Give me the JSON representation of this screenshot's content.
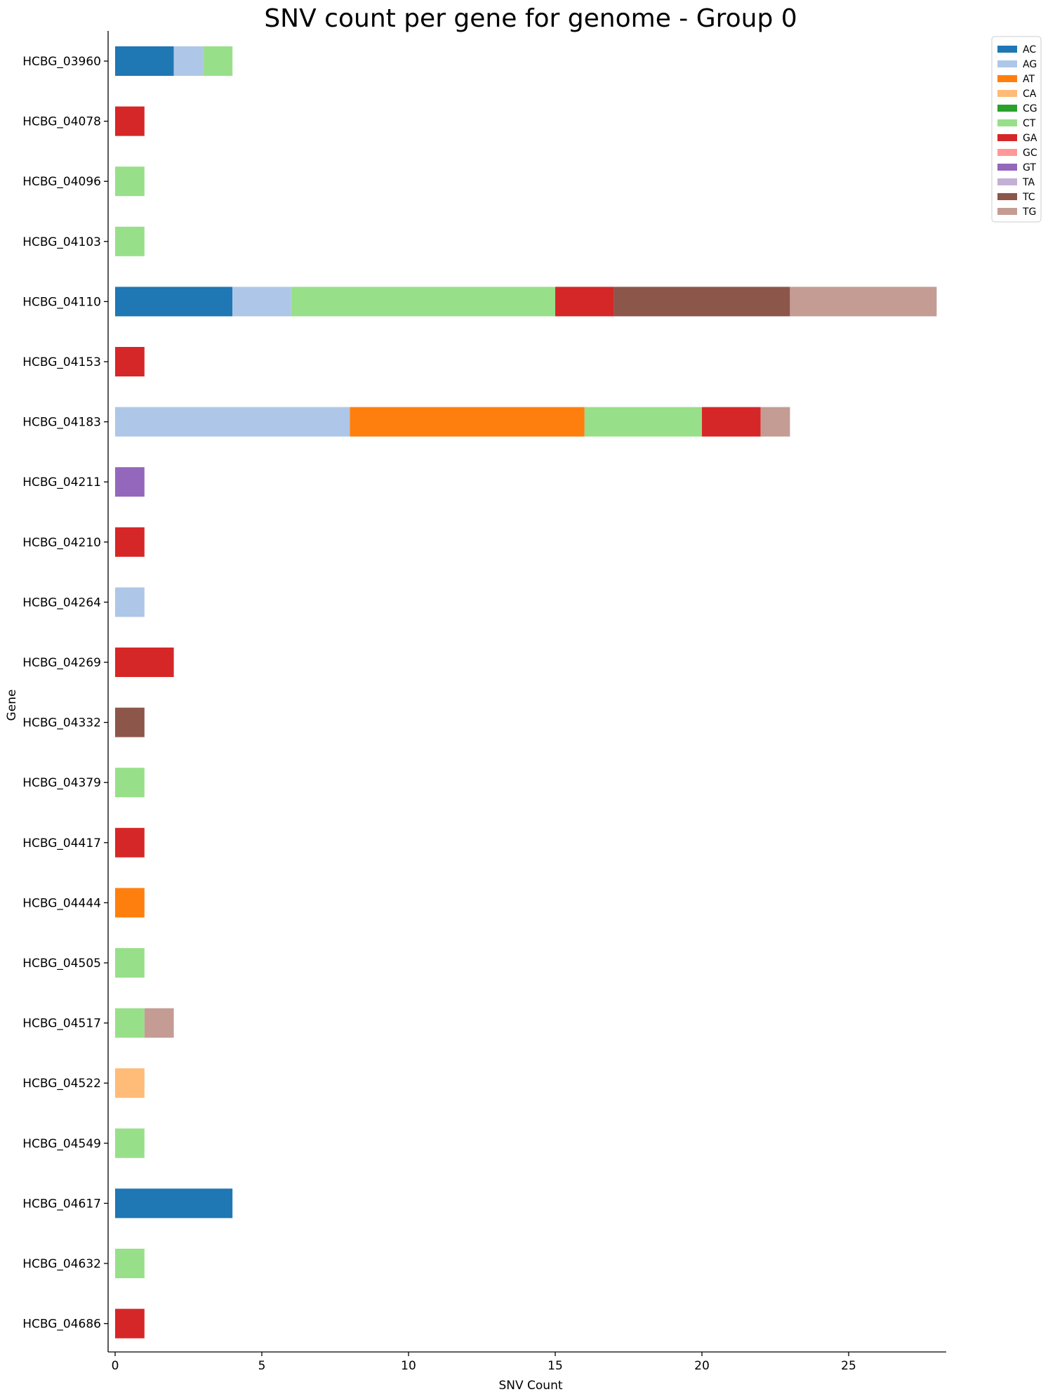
{
  "chart_data": {
    "type": "bar",
    "orientation": "horizontal",
    "stacked": true,
    "title": "SNV count per gene for genome - Group 0",
    "xlabel": "SNV Count",
    "ylabel": "Gene",
    "xlim": [
      0,
      28.3
    ],
    "xticks": [
      0,
      5,
      10,
      15,
      20,
      25
    ],
    "grid": false,
    "legend_position": "top-right outside",
    "categories": [
      "HCBG_03960",
      "HCBG_04078",
      "HCBG_04096",
      "HCBG_04103",
      "HCBG_04110",
      "HCBG_04153",
      "HCBG_04183",
      "HCBG_04211",
      "HCBG_04210",
      "HCBG_04264",
      "HCBG_04269",
      "HCBG_04332",
      "HCBG_04379",
      "HCBG_04417",
      "HCBG_04444",
      "HCBG_04505",
      "HCBG_04517",
      "HCBG_04522",
      "HCBG_04549",
      "HCBG_04617",
      "HCBG_04632",
      "HCBG_04686"
    ],
    "series": [
      {
        "name": "AC",
        "color": "#1f77b4",
        "values": [
          2,
          0,
          0,
          0,
          4,
          0,
          0,
          0,
          0,
          0,
          0,
          0,
          0,
          0,
          0,
          0,
          0,
          0,
          0,
          4,
          0,
          0
        ]
      },
      {
        "name": "AG",
        "color": "#aec7e8",
        "values": [
          1,
          0,
          0,
          0,
          2,
          0,
          8,
          0,
          0,
          1,
          0,
          0,
          0,
          0,
          0,
          0,
          0,
          0,
          0,
          0,
          0,
          0
        ]
      },
      {
        "name": "AT",
        "color": "#ff7f0e",
        "values": [
          0,
          0,
          0,
          0,
          0,
          0,
          8,
          0,
          0,
          0,
          0,
          0,
          0,
          0,
          1,
          0,
          0,
          0,
          0,
          0,
          0,
          0
        ]
      },
      {
        "name": "CA",
        "color": "#ffbb78",
        "values": [
          0,
          0,
          0,
          0,
          0,
          0,
          0,
          0,
          0,
          0,
          0,
          0,
          0,
          0,
          0,
          0,
          0,
          1,
          0,
          0,
          0,
          0
        ]
      },
      {
        "name": "CG",
        "color": "#2ca02c",
        "values": [
          0,
          0,
          0,
          0,
          0,
          0,
          0,
          0,
          0,
          0,
          0,
          0,
          0,
          0,
          0,
          0,
          0,
          0,
          0,
          0,
          0,
          0
        ]
      },
      {
        "name": "CT",
        "color": "#98df8a",
        "values": [
          1,
          0,
          1,
          1,
          9,
          0,
          4,
          0,
          0,
          0,
          0,
          0,
          1,
          0,
          0,
          1,
          1,
          0,
          1,
          0,
          1,
          0
        ]
      },
      {
        "name": "GA",
        "color": "#d62728",
        "values": [
          0,
          1,
          0,
          0,
          2,
          1,
          2,
          0,
          1,
          0,
          2,
          0,
          0,
          1,
          0,
          0,
          0,
          0,
          0,
          0,
          0,
          1
        ]
      },
      {
        "name": "GC",
        "color": "#ff9896",
        "values": [
          0,
          0,
          0,
          0,
          0,
          0,
          0,
          0,
          0,
          0,
          0,
          0,
          0,
          0,
          0,
          0,
          0,
          0,
          0,
          0,
          0,
          0
        ]
      },
      {
        "name": "GT",
        "color": "#9467bd",
        "values": [
          0,
          0,
          0,
          0,
          0,
          0,
          0,
          1,
          0,
          0,
          0,
          0,
          0,
          0,
          0,
          0,
          0,
          0,
          0,
          0,
          0,
          0
        ]
      },
      {
        "name": "TA",
        "color": "#c5b0d5",
        "values": [
          0,
          0,
          0,
          0,
          0,
          0,
          0,
          0,
          0,
          0,
          0,
          0,
          0,
          0,
          0,
          0,
          0,
          0,
          0,
          0,
          0,
          0
        ]
      },
      {
        "name": "TC",
        "color": "#8c564b",
        "values": [
          0,
          0,
          0,
          0,
          6,
          0,
          0,
          0,
          0,
          0,
          0,
          1,
          0,
          0,
          0,
          0,
          0,
          0,
          0,
          0,
          0,
          0
        ]
      },
      {
        "name": "TG",
        "color": "#c49c94",
        "values": [
          0,
          0,
          0,
          0,
          5,
          0,
          1,
          0,
          0,
          0,
          0,
          0,
          0,
          0,
          0,
          0,
          1,
          0,
          0,
          0,
          0,
          0
        ]
      }
    ]
  }
}
